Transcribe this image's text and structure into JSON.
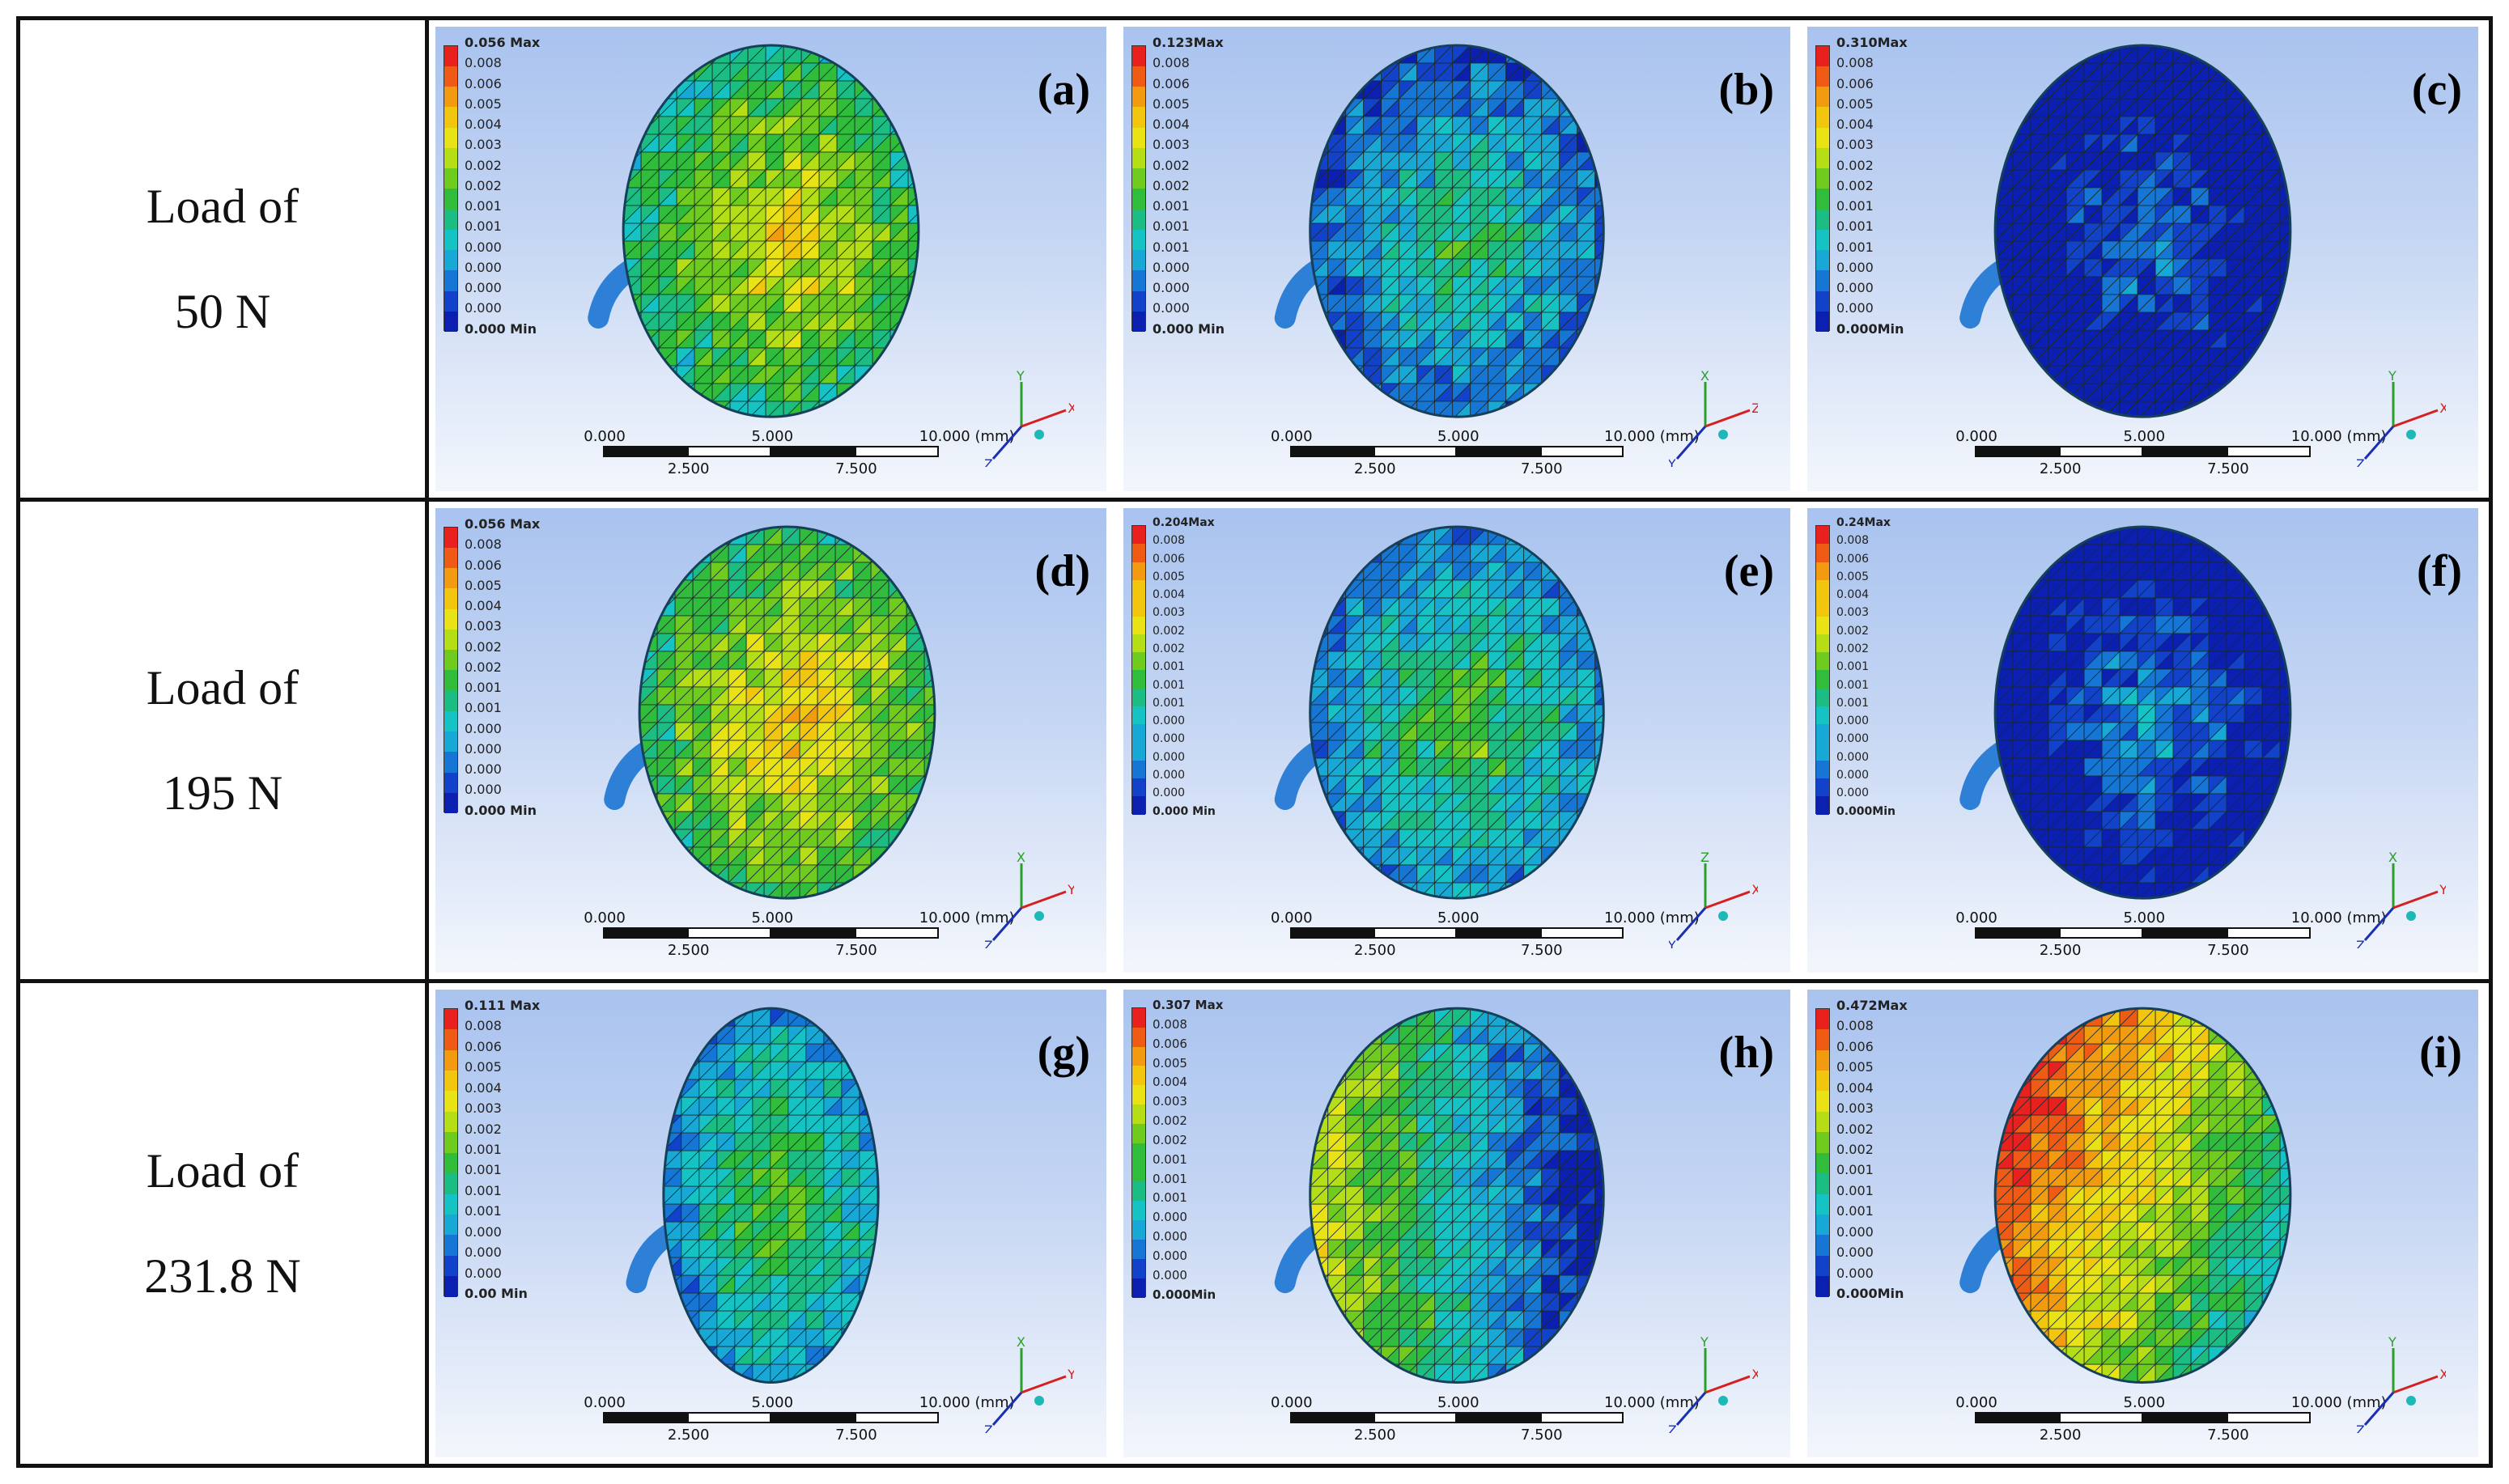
{
  "rows": [
    {
      "label_line1": "Load of",
      "label_line2": "50 N"
    },
    {
      "label_line1": "Load of",
      "label_line2": "195 N"
    },
    {
      "label_line1": "Load of",
      "label_line2": "231.8 N"
    }
  ],
  "panels": [
    {
      "letter": "(a)",
      "max_label": "0.056 Max",
      "min_label": "0.000 Min",
      "ticks": [
        "0.008",
        "0.006",
        "0.005",
        "0.004",
        "0.003",
        "0.002",
        "0.002",
        "0.001",
        "0.001",
        "0.000",
        "0.000",
        "0.000",
        "0.000"
      ],
      "scale_top": [
        "0.000",
        "5.000",
        "10.000 (mm)"
      ],
      "scale_bottom": [
        "2.500",
        "7.500"
      ],
      "triad_axes": [
        "Y",
        "X",
        "Z"
      ]
    },
    {
      "letter": "(d)",
      "max_label": "0.056 Max",
      "min_label": "0.000 Min",
      "ticks": [
        "0.008",
        "0.006",
        "0.005",
        "0.004",
        "0.003",
        "0.002",
        "0.002",
        "0.001",
        "0.001",
        "0.000",
        "0.000",
        "0.000",
        "0.000"
      ],
      "scale_top": [
        "0.000",
        "5.000",
        "10.000 (mm)"
      ],
      "scale_bottom": [
        "2.500",
        "7.500"
      ],
      "triad_axes": [
        "X",
        "Y",
        "Z"
      ]
    },
    {
      "letter": "(g)",
      "max_label": "0.111 Max",
      "min_label": "0.00 Min",
      "ticks": [
        "0.008",
        "0.006",
        "0.005",
        "0.004",
        "0.003",
        "0.002",
        "0.001",
        "0.001",
        "0.001",
        "0.001",
        "0.000",
        "0.000",
        "0.000"
      ],
      "scale_top": [
        "0.000",
        "5.000",
        "10.000 (mm)"
      ],
      "scale_bottom": [
        "2.500",
        "7.500"
      ],
      "triad_axes": [
        "X",
        "Y",
        "Z"
      ]
    },
    {
      "letter": "(b)",
      "max_label": "0.123Max",
      "min_label": "0.000 Min",
      "ticks": [
        "0.008",
        "0.006",
        "0.005",
        "0.004",
        "0.003",
        "0.002",
        "0.002",
        "0.001",
        "0.001",
        "0.001",
        "0.000",
        "0.000",
        "0.000"
      ],
      "scale_top": [
        "0.000",
        "5.000",
        "10.000 (mm)"
      ],
      "scale_bottom": [
        "2.500",
        "7.500"
      ],
      "triad_axes": [
        "X",
        "Z",
        "Y"
      ]
    },
    {
      "letter": "(e)",
      "max_label": "0.204Max",
      "min_label": "0.000 Min",
      "ticks": [
        "0.008",
        "0.006",
        "0.005",
        "0.004",
        "0.003",
        "0.002",
        "0.002",
        "0.001",
        "0.001",
        "0.001",
        "0.000",
        "0.000",
        "0.000",
        "0.000",
        "0.000"
      ],
      "scale_top": [
        "0.000",
        "5.000",
        "10.000 (mm)"
      ],
      "scale_bottom": [
        "2.500",
        "7.500"
      ],
      "triad_axes": [
        "Z",
        "X",
        "Y"
      ]
    },
    {
      "letter": "(h)",
      "max_label": "0.307 Max",
      "min_label": "0.000Min",
      "ticks": [
        "0.008",
        "0.006",
        "0.005",
        "0.004",
        "0.003",
        "0.002",
        "0.002",
        "0.001",
        "0.001",
        "0.001",
        "0.000",
        "0.000",
        "0.000",
        "0.000"
      ],
      "scale_top": [
        "0.000",
        "5.000",
        "10.000 (mm)"
      ],
      "scale_bottom": [
        "2.500",
        "7.500"
      ],
      "triad_axes": [
        "Y",
        "X",
        "Z"
      ]
    },
    {
      "letter": "(c)",
      "max_label": "0.310Max",
      "min_label": "0.000Min",
      "ticks": [
        "0.008",
        "0.006",
        "0.005",
        "0.004",
        "0.003",
        "0.002",
        "0.002",
        "0.001",
        "0.001",
        "0.001",
        "0.000",
        "0.000",
        "0.000"
      ],
      "scale_top": [
        "0.000",
        "5.000",
        "10.000 (mm)"
      ],
      "scale_bottom": [
        "2.500",
        "7.500"
      ],
      "triad_axes": [
        "Y",
        "X",
        "Z"
      ]
    },
    {
      "letter": "(f)",
      "max_label": "0.24Max",
      "min_label": "0.000Min",
      "ticks": [
        "0.008",
        "0.006",
        "0.005",
        "0.004",
        "0.003",
        "0.002",
        "0.002",
        "0.001",
        "0.001",
        "0.001",
        "0.000",
        "0.000",
        "0.000",
        "0.000",
        "0.000"
      ],
      "scale_top": [
        "0.000",
        "5.000",
        "10.000 (mm)"
      ],
      "scale_bottom": [
        "2.500",
        "7.500"
      ],
      "triad_axes": [
        "X",
        "Y",
        "Z"
      ]
    },
    {
      "letter": "(i)",
      "max_label": "0.472Max",
      "min_label": "0.000Min",
      "ticks": [
        "0.008",
        "0.006",
        "0.005",
        "0.004",
        "0.003",
        "0.002",
        "0.002",
        "0.001",
        "0.001",
        "0.001",
        "0.000",
        "0.000",
        "0.000"
      ],
      "scale_top": [
        "0.000",
        "5.000",
        "10.000 (mm)"
      ],
      "scale_bottom": [
        "2.500",
        "7.500"
      ],
      "triad_axes": [
        "Y",
        "X",
        "Z"
      ]
    }
  ]
}
